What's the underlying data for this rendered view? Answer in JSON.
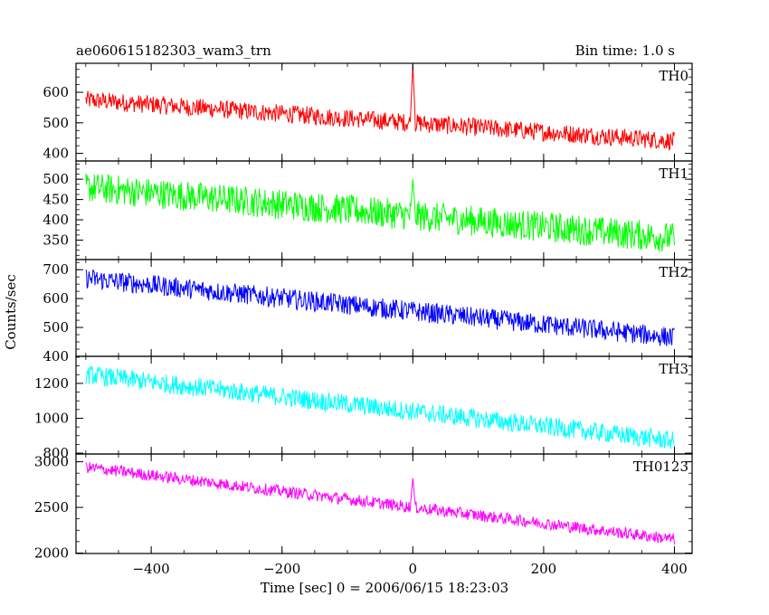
{
  "chart_data": {
    "type": "line",
    "title": "ae060615182303_wam3_trn",
    "bin_time_label": "Bin time: 1.0 s",
    "xlabel": "Time [sec] 0 = 2006/06/15 18:23:03",
    "ylabel": "Counts/sec",
    "xlim": [
      -515,
      427
    ],
    "x_ticks": [
      -400,
      -200,
      0,
      200,
      400
    ],
    "x_tick_labels": [
      "−400",
      "−200",
      "0",
      "200",
      "400"
    ],
    "x_range_data": [
      -500,
      400
    ],
    "burst_time": 0,
    "panels": [
      {
        "name": "TH0",
        "color": "#ff0000",
        "ylim": [
          375,
          695
        ],
        "y_ticks": [
          400,
          500,
          600
        ],
        "y_tick_labels": [
          "400",
          "500",
          "600"
        ],
        "trend_start": 575,
        "trend_end": 440,
        "noise": 60,
        "spike_peak": 690,
        "spike_width": 3
      },
      {
        "name": "TH1",
        "color": "#00ff00",
        "ylim": [
          302,
          545
        ],
        "y_ticks": [
          350,
          400,
          450,
          500
        ],
        "y_tick_labels": [
          "350",
          "400",
          "450",
          "500"
        ],
        "trend_start": 480,
        "trend_end": 355,
        "noise": 75,
        "spike_peak": 500,
        "spike_width": 3
      },
      {
        "name": "TH2",
        "color": "#0000ff",
        "ylim": [
          400,
          735
        ],
        "y_ticks": [
          400,
          500,
          600,
          700
        ],
        "y_tick_labels": [
          "400",
          "500",
          "600",
          "700"
        ],
        "trend_start": 670,
        "trend_end": 465,
        "noise": 70,
        "spike_peak": null,
        "spike_width": 0
      },
      {
        "name": "TH3",
        "color": "#00ffff",
        "ylim": [
          795,
          1355
        ],
        "y_ticks": [
          800,
          1000,
          1200
        ],
        "y_tick_labels": [
          "800",
          "1000",
          "1200"
        ],
        "trend_start": 1250,
        "trend_end": 870,
        "noise": 110,
        "spike_peak": null,
        "spike_width": 0
      },
      {
        "name": "TH0123",
        "color": "#ff00ff",
        "ylim": [
          1995,
          3085
        ],
        "y_ticks": [
          2000,
          2500,
          3000
        ],
        "y_tick_labels": [
          "2000",
          "2500",
          "3000"
        ],
        "trend_start": 2940,
        "trend_end": 2150,
        "noise": 130,
        "spike_peak": 2820,
        "spike_width": 3
      }
    ]
  }
}
